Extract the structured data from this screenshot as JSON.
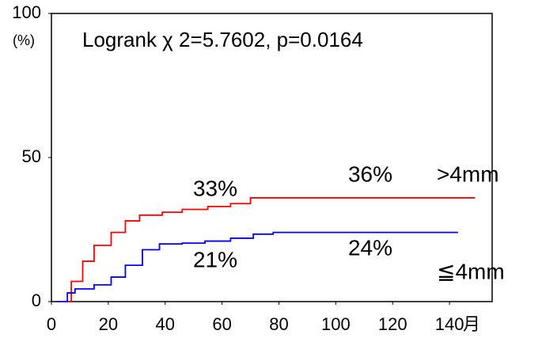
{
  "chart_data": {
    "type": "step",
    "annotations": [
      "Logrank  χ 2=5.7602, p=0.0164",
      "33%",
      "36%",
      "21%",
      "24%"
    ],
    "y_label": "(%)",
    "x_label": "月",
    "xlim": [
      0,
      155
    ],
    "xticks": [
      0,
      20,
      40,
      60,
      80,
      100,
      120,
      140
    ],
    "ylim": [
      0,
      100
    ],
    "yticks": [
      0,
      50,
      100
    ],
    "series": [
      {
        "name": ">4mm",
        "color": "#ff0000",
        "x": [
          2,
          7,
          11,
          15,
          21,
          26,
          31,
          39,
          46,
          55,
          63,
          70,
          149
        ],
        "values": [
          0,
          7,
          14,
          19.5,
          24,
          28,
          30,
          31,
          32,
          33,
          34,
          36,
          36
        ]
      },
      {
        "name": "≦4mm",
        "color": "#0000ff",
        "x": [
          2,
          5.6,
          8.3,
          15,
          21,
          26,
          32,
          38,
          46,
          54,
          63,
          71,
          78,
          143
        ],
        "values": [
          0,
          3,
          4.4,
          5.8,
          8.5,
          12.6,
          18,
          20,
          20.3,
          21,
          22,
          23.4,
          24,
          24
        ]
      }
    ]
  }
}
